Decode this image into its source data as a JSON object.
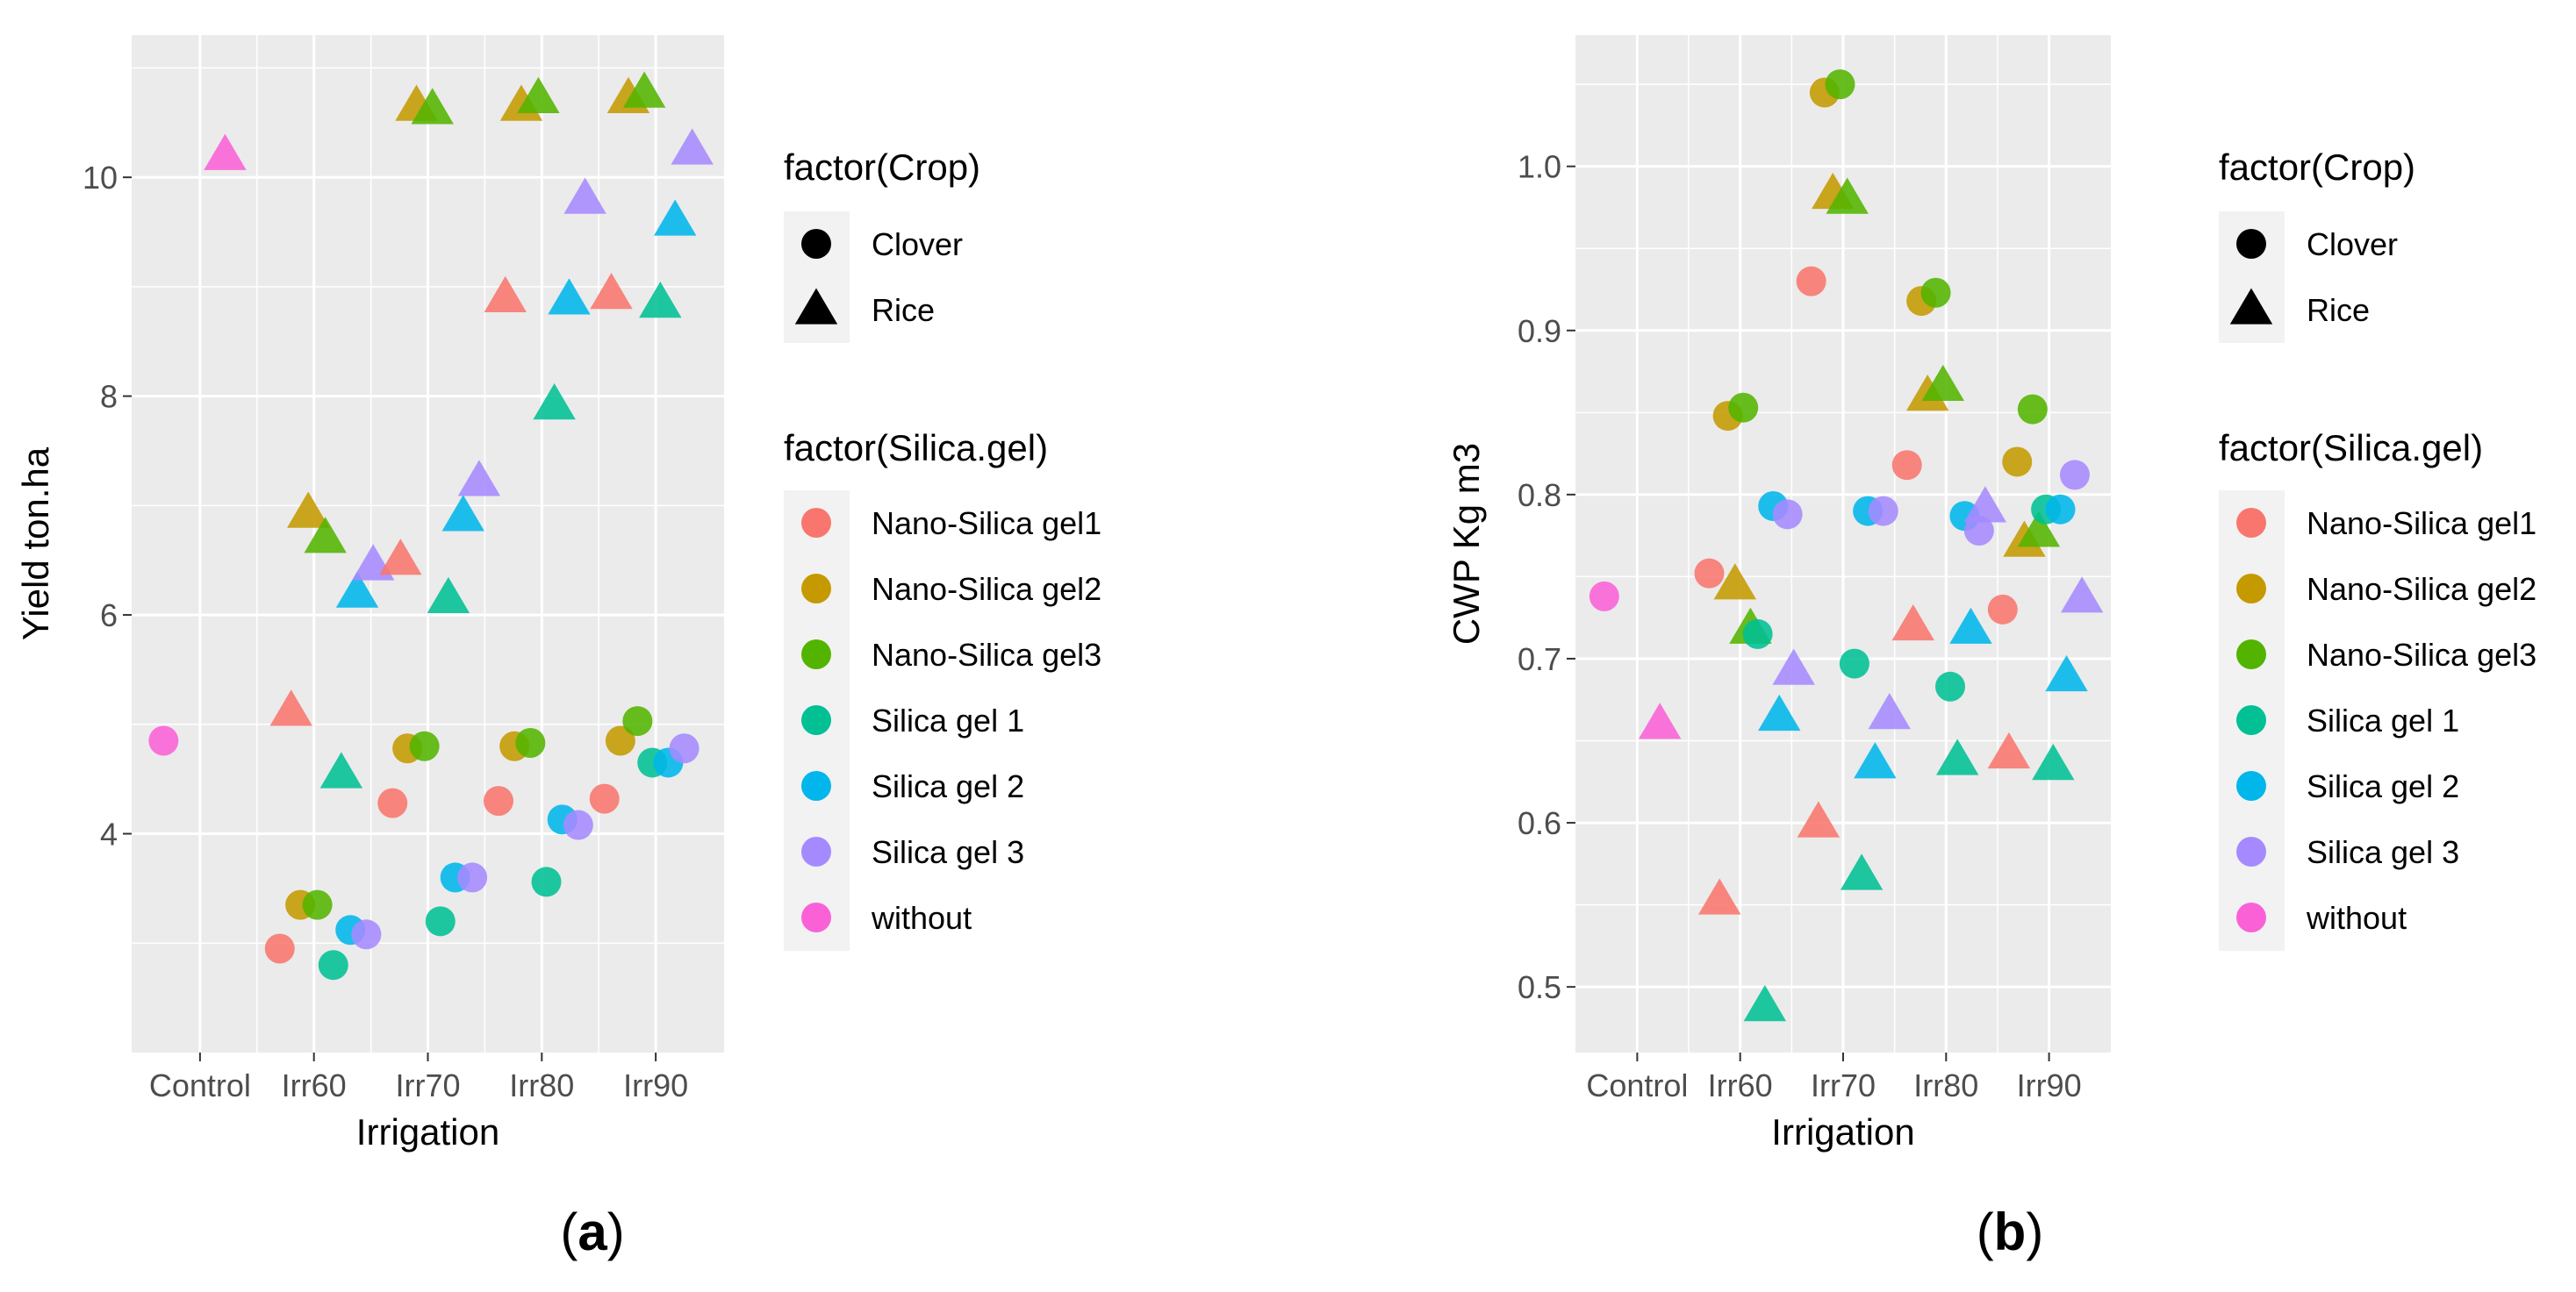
{
  "colors": {
    "Nano-Silica gel1": "#F8766D",
    "Nano-Silica gel2": "#C49A00",
    "Nano-Silica gel3": "#53B400",
    "Silica gel 1": "#00C094",
    "Silica gel 2": "#00B6EB",
    "Silica gel 3": "#A58AFF",
    "without": "#FB61D7",
    "panel_bg": "#EBEBEB",
    "grid": "#FFFFFF",
    "legend_key_bg": "#F2F2F2"
  },
  "legend": {
    "crop_title": "factor(Crop)",
    "crop_items": [
      {
        "label": "Clover",
        "shape": "circle"
      },
      {
        "label": "Rice",
        "shape": "triangle"
      }
    ],
    "silica_title": "factor(Silica.gel)",
    "silica_items": [
      "Nano-Silica gel1",
      "Nano-Silica gel2",
      "Nano-Silica gel3",
      "Silica gel 1",
      "Silica gel 2",
      "Silica gel 3",
      "without"
    ]
  },
  "chart_data": [
    {
      "type": "scatter",
      "panel_label": {
        "pre": "(",
        "letter": "a",
        "post": ")"
      },
      "xlabel": "Irrigation",
      "ylabel": "Yield ton.ha",
      "categories": [
        "Control",
        "Irr60",
        "Irr70",
        "Irr80",
        "Irr90"
      ],
      "ylim": [
        2.0,
        11.3
      ],
      "yticks": [
        4,
        6,
        8,
        10
      ],
      "ytick_labels": [
        "4",
        "6",
        "8",
        "10"
      ],
      "grid": true,
      "points": [
        {
          "x": 0.68,
          "y": 4.85,
          "crop": "Clover",
          "silica": "without"
        },
        {
          "x": 1.22,
          "y": 10.2,
          "crop": "Rice",
          "silica": "without"
        },
        {
          "x": 1.7,
          "y": 2.95,
          "crop": "Clover",
          "silica": "Nano-Silica gel1"
        },
        {
          "x": 1.8,
          "y": 5.12,
          "crop": "Rice",
          "silica": "Nano-Silica gel1"
        },
        {
          "x": 1.88,
          "y": 3.35,
          "crop": "Clover",
          "silica": "Nano-Silica gel2"
        },
        {
          "x": 1.95,
          "y": 6.93,
          "crop": "Rice",
          "silica": "Nano-Silica gel2"
        },
        {
          "x": 2.03,
          "y": 3.35,
          "crop": "Clover",
          "silica": "Nano-Silica gel3"
        },
        {
          "x": 2.1,
          "y": 6.7,
          "crop": "Rice",
          "silica": "Nano-Silica gel3"
        },
        {
          "x": 2.17,
          "y": 2.8,
          "crop": "Clover",
          "silica": "Silica gel 1"
        },
        {
          "x": 2.24,
          "y": 4.55,
          "crop": "Rice",
          "silica": "Silica gel 1"
        },
        {
          "x": 2.32,
          "y": 3.12,
          "crop": "Clover",
          "silica": "Silica gel 2"
        },
        {
          "x": 2.38,
          "y": 6.2,
          "crop": "Rice",
          "silica": "Silica gel 2"
        },
        {
          "x": 2.46,
          "y": 3.08,
          "crop": "Clover",
          "silica": "Silica gel 3"
        },
        {
          "x": 2.52,
          "y": 6.45,
          "crop": "Rice",
          "silica": "Silica gel 3"
        },
        {
          "x": 2.69,
          "y": 4.28,
          "crop": "Clover",
          "silica": "Nano-Silica gel1"
        },
        {
          "x": 2.76,
          "y": 6.5,
          "crop": "Rice",
          "silica": "Nano-Silica gel1"
        },
        {
          "x": 2.82,
          "y": 4.78,
          "crop": "Clover",
          "silica": "Nano-Silica gel2"
        },
        {
          "x": 2.9,
          "y": 10.65,
          "crop": "Rice",
          "silica": "Nano-Silica gel2"
        },
        {
          "x": 2.97,
          "y": 4.8,
          "crop": "Clover",
          "silica": "Nano-Silica gel3"
        },
        {
          "x": 3.04,
          "y": 10.62,
          "crop": "Rice",
          "silica": "Nano-Silica gel3"
        },
        {
          "x": 3.11,
          "y": 3.2,
          "crop": "Clover",
          "silica": "Silica gel 1"
        },
        {
          "x": 3.18,
          "y": 6.15,
          "crop": "Rice",
          "silica": "Silica gel 1"
        },
        {
          "x": 3.24,
          "y": 3.6,
          "crop": "Clover",
          "silica": "Silica gel 2"
        },
        {
          "x": 3.31,
          "y": 6.9,
          "crop": "Rice",
          "silica": "Silica gel 2"
        },
        {
          "x": 3.39,
          "y": 3.6,
          "crop": "Clover",
          "silica": "Silica gel 3"
        },
        {
          "x": 3.45,
          "y": 7.22,
          "crop": "Rice",
          "silica": "Silica gel 3"
        },
        {
          "x": 3.62,
          "y": 4.3,
          "crop": "Clover",
          "silica": "Nano-Silica gel1"
        },
        {
          "x": 3.68,
          "y": 8.9,
          "crop": "Rice",
          "silica": "Nano-Silica gel1"
        },
        {
          "x": 3.76,
          "y": 4.8,
          "crop": "Clover",
          "silica": "Nano-Silica gel2"
        },
        {
          "x": 3.82,
          "y": 10.65,
          "crop": "Rice",
          "silica": "Nano-Silica gel2"
        },
        {
          "x": 3.9,
          "y": 4.83,
          "crop": "Clover",
          "silica": "Nano-Silica gel3"
        },
        {
          "x": 3.97,
          "y": 10.72,
          "crop": "Rice",
          "silica": "Nano-Silica gel3"
        },
        {
          "x": 4.04,
          "y": 3.56,
          "crop": "Clover",
          "silica": "Silica gel 1"
        },
        {
          "x": 4.11,
          "y": 7.92,
          "crop": "Rice",
          "silica": "Silica gel 1"
        },
        {
          "x": 4.18,
          "y": 4.13,
          "crop": "Clover",
          "silica": "Silica gel 2"
        },
        {
          "x": 4.24,
          "y": 8.88,
          "crop": "Rice",
          "silica": "Silica gel 2"
        },
        {
          "x": 4.32,
          "y": 4.08,
          "crop": "Clover",
          "silica": "Silica gel 3"
        },
        {
          "x": 4.38,
          "y": 9.8,
          "crop": "Rice",
          "silica": "Silica gel 3"
        },
        {
          "x": 4.55,
          "y": 4.32,
          "crop": "Clover",
          "silica": "Nano-Silica gel1"
        },
        {
          "x": 4.61,
          "y": 8.93,
          "crop": "Rice",
          "silica": "Nano-Silica gel1"
        },
        {
          "x": 4.69,
          "y": 4.85,
          "crop": "Clover",
          "silica": "Nano-Silica gel2"
        },
        {
          "x": 4.76,
          "y": 10.72,
          "crop": "Rice",
          "silica": "Nano-Silica gel2"
        },
        {
          "x": 4.84,
          "y": 5.03,
          "crop": "Clover",
          "silica": "Nano-Silica gel3"
        },
        {
          "x": 4.9,
          "y": 10.77,
          "crop": "Rice",
          "silica": "Nano-Silica gel3"
        },
        {
          "x": 4.97,
          "y": 4.65,
          "crop": "Clover",
          "silica": "Silica gel 1"
        },
        {
          "x": 5.04,
          "y": 8.85,
          "crop": "Rice",
          "silica": "Silica gel 1"
        },
        {
          "x": 5.11,
          "y": 4.65,
          "crop": "Clover",
          "silica": "Silica gel 2"
        },
        {
          "x": 5.17,
          "y": 9.6,
          "crop": "Rice",
          "silica": "Silica gel 2"
        },
        {
          "x": 5.25,
          "y": 4.78,
          "crop": "Clover",
          "silica": "Silica gel 3"
        },
        {
          "x": 5.32,
          "y": 10.25,
          "crop": "Rice",
          "silica": "Silica gel 3"
        }
      ]
    },
    {
      "type": "scatter",
      "panel_label": {
        "pre": "(",
        "letter": "b",
        "post": ")"
      },
      "xlabel": "Irrigation",
      "ylabel": "CWP Kg m3",
      "categories": [
        "Control",
        "Irr60",
        "Irr70",
        "Irr80",
        "Irr90"
      ],
      "ylim": [
        0.46,
        1.08
      ],
      "yticks": [
        0.5,
        0.6,
        0.7,
        0.8,
        0.9,
        1.0
      ],
      "ytick_labels": [
        "0.5",
        "0.6",
        "0.7",
        "0.8",
        "0.9",
        "1.0"
      ],
      "grid": true,
      "points": [
        {
          "x": 0.68,
          "y": 0.738,
          "crop": "Clover",
          "silica": "without"
        },
        {
          "x": 1.22,
          "y": 0.66,
          "crop": "Rice",
          "silica": "without"
        },
        {
          "x": 1.7,
          "y": 0.752,
          "crop": "Clover",
          "silica": "Nano-Silica gel1"
        },
        {
          "x": 1.8,
          "y": 0.553,
          "crop": "Rice",
          "silica": "Nano-Silica gel1"
        },
        {
          "x": 1.88,
          "y": 0.848,
          "crop": "Clover",
          "silica": "Nano-Silica gel2"
        },
        {
          "x": 1.95,
          "y": 0.745,
          "crop": "Rice",
          "silica": "Nano-Silica gel2"
        },
        {
          "x": 2.03,
          "y": 0.853,
          "crop": "Clover",
          "silica": "Nano-Silica gel3"
        },
        {
          "x": 2.1,
          "y": 0.718,
          "crop": "Rice",
          "silica": "Nano-Silica gel3"
        },
        {
          "x": 2.17,
          "y": 0.715,
          "crop": "Clover",
          "silica": "Silica gel 1"
        },
        {
          "x": 2.24,
          "y": 0.488,
          "crop": "Rice",
          "silica": "Silica gel 1"
        },
        {
          "x": 2.32,
          "y": 0.793,
          "crop": "Clover",
          "silica": "Silica gel 2"
        },
        {
          "x": 2.38,
          "y": 0.665,
          "crop": "Rice",
          "silica": "Silica gel 2"
        },
        {
          "x": 2.46,
          "y": 0.788,
          "crop": "Clover",
          "silica": "Silica gel 3"
        },
        {
          "x": 2.52,
          "y": 0.693,
          "crop": "Rice",
          "silica": "Silica gel 3"
        },
        {
          "x": 2.69,
          "y": 0.93,
          "crop": "Clover",
          "silica": "Nano-Silica gel1"
        },
        {
          "x": 2.76,
          "y": 0.6,
          "crop": "Rice",
          "silica": "Nano-Silica gel1"
        },
        {
          "x": 2.82,
          "y": 1.045,
          "crop": "Clover",
          "silica": "Nano-Silica gel2"
        },
        {
          "x": 2.9,
          "y": 0.983,
          "crop": "Rice",
          "silica": "Nano-Silica gel2"
        },
        {
          "x": 2.97,
          "y": 1.05,
          "crop": "Clover",
          "silica": "Nano-Silica gel3"
        },
        {
          "x": 3.04,
          "y": 0.98,
          "crop": "Rice",
          "silica": "Nano-Silica gel3"
        },
        {
          "x": 3.11,
          "y": 0.697,
          "crop": "Clover",
          "silica": "Silica gel 1"
        },
        {
          "x": 3.18,
          "y": 0.568,
          "crop": "Rice",
          "silica": "Silica gel 1"
        },
        {
          "x": 3.24,
          "y": 0.79,
          "crop": "Clover",
          "silica": "Silica gel 2"
        },
        {
          "x": 3.31,
          "y": 0.636,
          "crop": "Rice",
          "silica": "Silica gel 2"
        },
        {
          "x": 3.39,
          "y": 0.79,
          "crop": "Clover",
          "silica": "Silica gel 3"
        },
        {
          "x": 3.45,
          "y": 0.666,
          "crop": "Rice",
          "silica": "Silica gel 3"
        },
        {
          "x": 3.62,
          "y": 0.818,
          "crop": "Clover",
          "silica": "Nano-Silica gel1"
        },
        {
          "x": 3.68,
          "y": 0.72,
          "crop": "Rice",
          "silica": "Nano-Silica gel1"
        },
        {
          "x": 3.76,
          "y": 0.918,
          "crop": "Clover",
          "silica": "Nano-Silica gel2"
        },
        {
          "x": 3.82,
          "y": 0.86,
          "crop": "Rice",
          "silica": "Nano-Silica gel2"
        },
        {
          "x": 3.9,
          "y": 0.923,
          "crop": "Clover",
          "silica": "Nano-Silica gel3"
        },
        {
          "x": 3.97,
          "y": 0.866,
          "crop": "Rice",
          "silica": "Nano-Silica gel3"
        },
        {
          "x": 4.04,
          "y": 0.683,
          "crop": "Clover",
          "silica": "Silica gel 1"
        },
        {
          "x": 4.11,
          "y": 0.638,
          "crop": "Rice",
          "silica": "Silica gel 1"
        },
        {
          "x": 4.18,
          "y": 0.787,
          "crop": "Clover",
          "silica": "Silica gel 2"
        },
        {
          "x": 4.24,
          "y": 0.718,
          "crop": "Rice",
          "silica": "Silica gel 2"
        },
        {
          "x": 4.32,
          "y": 0.778,
          "crop": "Clover",
          "silica": "Silica gel 3"
        },
        {
          "x": 4.38,
          "y": 0.792,
          "crop": "Rice",
          "silica": "Silica gel 3"
        },
        {
          "x": 4.55,
          "y": 0.73,
          "crop": "Clover",
          "silica": "Nano-Silica gel1"
        },
        {
          "x": 4.61,
          "y": 0.642,
          "crop": "Rice",
          "silica": "Nano-Silica gel1"
        },
        {
          "x": 4.69,
          "y": 0.82,
          "crop": "Clover",
          "silica": "Nano-Silica gel2"
        },
        {
          "x": 4.76,
          "y": 0.771,
          "crop": "Rice",
          "silica": "Nano-Silica gel2"
        },
        {
          "x": 4.84,
          "y": 0.852,
          "crop": "Clover",
          "silica": "Nano-Silica gel3"
        },
        {
          "x": 4.9,
          "y": 0.777,
          "crop": "Rice",
          "silica": "Nano-Silica gel3"
        },
        {
          "x": 4.97,
          "y": 0.791,
          "crop": "Clover",
          "silica": "Silica gel 1"
        },
        {
          "x": 5.04,
          "y": 0.635,
          "crop": "Rice",
          "silica": "Silica gel 1"
        },
        {
          "x": 5.11,
          "y": 0.791,
          "crop": "Clover",
          "silica": "Silica gel 2"
        },
        {
          "x": 5.17,
          "y": 0.689,
          "crop": "Rice",
          "silica": "Silica gel 2"
        },
        {
          "x": 5.25,
          "y": 0.812,
          "crop": "Clover",
          "silica": "Silica gel 3"
        },
        {
          "x": 5.32,
          "y": 0.737,
          "crop": "Rice",
          "silica": "Silica gel 3"
        }
      ]
    }
  ]
}
